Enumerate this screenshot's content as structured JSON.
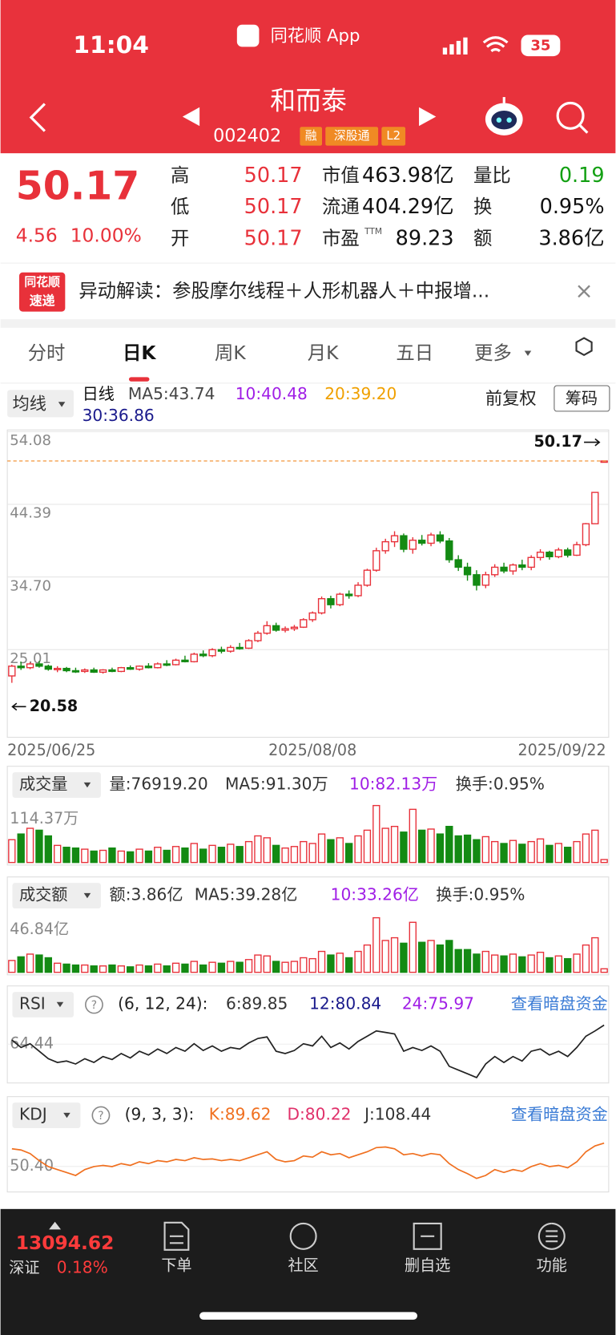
{
  "status": {
    "time": "11:04",
    "app": "同花顺 App",
    "battery": "35"
  },
  "header": {
    "name": "和而泰",
    "code": "002402",
    "tags": [
      "融",
      "深股通",
      "L2"
    ]
  },
  "quote": {
    "price": "50.17",
    "change": "4.56",
    "pct": "10.00%",
    "fields": [
      {
        "label": "高",
        "value": "50.17",
        "color": "#e8313a"
      },
      {
        "label": "市值",
        "value": "463.98亿",
        "color": "#111111"
      },
      {
        "label": "量比",
        "value": "0.19",
        "color": "#13a013"
      },
      {
        "label": "低",
        "value": "50.17",
        "color": "#e8313a"
      },
      {
        "label": "流通",
        "value": "404.29亿",
        "color": "#111111"
      },
      {
        "label": "换",
        "value": "0.95%",
        "color": "#111111"
      },
      {
        "label": "开",
        "value": "50.17",
        "color": "#e8313a"
      },
      {
        "label": "市盈",
        "sup": "TTM",
        "value": "89.23",
        "color": "#111111"
      },
      {
        "label": "额",
        "value": "3.86亿",
        "color": "#111111"
      }
    ]
  },
  "banner": {
    "badge": [
      "同花顺",
      "速递"
    ],
    "text": "异动解读：参股摩尔线程＋人形机器人＋中报增...",
    "close": "×"
  },
  "tabs": {
    "items": [
      "分时",
      "日K",
      "周K",
      "月K",
      "五日",
      "更多"
    ],
    "active": 1
  },
  "kline": {
    "button": "均线",
    "period": "日线",
    "ma": [
      {
        "text": "MA5:43.74",
        "color": "#444444"
      },
      {
        "text": "10:40.48",
        "color": "#a01ee6"
      },
      {
        "text": "20:39.20",
        "color": "#f0a000"
      },
      {
        "text": "30:36.86",
        "color": "#1a1a8c"
      }
    ],
    "adjust": "前复权",
    "chips": "筹码"
  },
  "chart_data": [
    {
      "type": "candlestick",
      "ylim": [
        13.31,
        54.31
      ],
      "yticks": [
        54.08,
        44.39,
        {
          "value": 34.7,
          "label": "34.70"
        },
        25.01
      ],
      "annotations": [
        {
          "text": "50.17",
          "value": 50.17
        },
        {
          "text": "20.58",
          "value": 20.58
        }
      ],
      "up_color": "#e8313a",
      "down_color": "#138a13",
      "categories": [
        "2025/06/25",
        null,
        null,
        null,
        null,
        null,
        null,
        null,
        null,
        null,
        null,
        null,
        null,
        null,
        null,
        null,
        null,
        null,
        null,
        null,
        null,
        null,
        null,
        null,
        null,
        null,
        null,
        null,
        null,
        null,
        null,
        null,
        null,
        "2025/08/08",
        null,
        null,
        null,
        null,
        null,
        null,
        null,
        null,
        null,
        null,
        null,
        null,
        null,
        null,
        null,
        null,
        null,
        null,
        null,
        null,
        null,
        null,
        null,
        null,
        null,
        null,
        null,
        null,
        null,
        null,
        null,
        "2025/09/22"
      ],
      "ohlc": [
        [
          21.5,
          23.0,
          20.58,
          22.8
        ],
        [
          22.8,
          23.4,
          22.3,
          22.6
        ],
        [
          22.6,
          23.3,
          22.4,
          23.1
        ],
        [
          23.1,
          23.5,
          22.6,
          22.8
        ],
        [
          22.8,
          23.0,
          22.2,
          22.4
        ],
        [
          22.4,
          22.8,
          22.0,
          22.5
        ],
        [
          22.5,
          22.7,
          22.0,
          22.2
        ],
        [
          22.2,
          22.6,
          21.9,
          22.1
        ],
        [
          22.1,
          22.5,
          21.9,
          22.3
        ],
        [
          22.3,
          22.6,
          21.9,
          22.0
        ],
        [
          22.0,
          22.4,
          21.8,
          22.3
        ],
        [
          22.3,
          22.6,
          22.0,
          22.1
        ],
        [
          22.1,
          22.7,
          22.0,
          22.6
        ],
        [
          22.6,
          22.9,
          22.3,
          22.4
        ],
        [
          22.4,
          22.9,
          22.2,
          22.8
        ],
        [
          22.8,
          23.2,
          22.5,
          22.6
        ],
        [
          22.6,
          23.3,
          22.5,
          23.1
        ],
        [
          23.1,
          23.6,
          22.8,
          23.0
        ],
        [
          23.0,
          23.8,
          22.9,
          23.6
        ],
        [
          23.6,
          24.2,
          23.3,
          23.4
        ],
        [
          23.4,
          24.6,
          23.3,
          24.4
        ],
        [
          24.4,
          24.9,
          24.0,
          24.2
        ],
        [
          24.2,
          25.2,
          24.0,
          25.0
        ],
        [
          25.0,
          25.4,
          24.5,
          24.8
        ],
        [
          24.8,
          25.6,
          24.6,
          25.3
        ],
        [
          25.3,
          25.9,
          25.0,
          25.2
        ],
        [
          25.2,
          26.4,
          25.1,
          26.2
        ],
        [
          26.2,
          27.5,
          26.0,
          27.2
        ],
        [
          27.2,
          28.8,
          27.0,
          28.2
        ],
        [
          28.2,
          28.6,
          27.4,
          27.6
        ],
        [
          27.6,
          28.1,
          27.3,
          27.8
        ],
        [
          27.8,
          28.3,
          27.5,
          28.0
        ],
        [
          28.0,
          29.2,
          27.9,
          29.0
        ],
        [
          29.0,
          30.1,
          28.7,
          29.9
        ],
        [
          29.9,
          32.1,
          29.7,
          31.8
        ],
        [
          31.8,
          32.2,
          30.5,
          31.0
        ],
        [
          31.0,
          32.6,
          30.8,
          32.4
        ],
        [
          32.4,
          32.9,
          31.8,
          32.2
        ],
        [
          32.2,
          34.0,
          32.0,
          33.6
        ],
        [
          33.6,
          35.8,
          33.4,
          35.6
        ],
        [
          35.6,
          38.6,
          35.4,
          38.2
        ],
        [
          38.2,
          39.8,
          37.8,
          39.4
        ],
        [
          39.4,
          40.8,
          38.7,
          40.2
        ],
        [
          40.2,
          40.5,
          38.0,
          38.4
        ],
        [
          38.4,
          40.0,
          37.8,
          39.6
        ],
        [
          39.6,
          40.3,
          38.9,
          39.2
        ],
        [
          39.2,
          40.6,
          38.8,
          40.3
        ],
        [
          40.3,
          40.8,
          39.2,
          39.5
        ],
        [
          39.5,
          39.9,
          36.6,
          37.0
        ],
        [
          37.0,
          37.6,
          35.5,
          36.0
        ],
        [
          36.0,
          36.6,
          34.2,
          35.0
        ],
        [
          35.0,
          35.6,
          32.9,
          33.6
        ],
        [
          33.6,
          35.4,
          33.2,
          35.0
        ],
        [
          35.0,
          36.4,
          34.7,
          36.0
        ],
        [
          36.0,
          36.6,
          35.2,
          35.5
        ],
        [
          35.5,
          36.5,
          35.0,
          36.3
        ],
        [
          36.3,
          37.0,
          35.6,
          36.0
        ],
        [
          36.0,
          37.6,
          35.6,
          37.3
        ],
        [
          37.3,
          38.4,
          36.9,
          38.0
        ],
        [
          38.0,
          38.2,
          37.0,
          37.4
        ],
        [
          37.4,
          38.6,
          37.2,
          38.3
        ],
        [
          38.3,
          38.6,
          37.3,
          37.6
        ],
        [
          37.6,
          39.4,
          37.5,
          39.0
        ],
        [
          39.0,
          41.9,
          38.8,
          41.8
        ],
        [
          41.8,
          46.0,
          41.8,
          45.98
        ],
        [
          50.17,
          50.17,
          50.17,
          50.17
        ]
      ]
    },
    {
      "type": "bar",
      "button": "成交量",
      "legend": [
        {
          "text": "量:76919.20",
          "color": "#333333"
        },
        {
          "text": "MA5:91.30万",
          "color": "#333333"
        },
        {
          "text": "10:82.13万",
          "color": "#a01ee6"
        },
        {
          "text": "换手:0.95%",
          "color": "#333333"
        }
      ],
      "ylim": [
        0,
        152.5
      ],
      "yticks": [
        {
          "value": 114.37,
          "label": "114.37万"
        }
      ],
      "values": [
        60,
        75,
        90,
        85,
        70,
        45,
        40,
        38,
        35,
        30,
        32,
        38,
        30,
        28,
        35,
        30,
        40,
        32,
        42,
        38,
        50,
        35,
        45,
        40,
        48,
        42,
        55,
        70,
        65,
        45,
        38,
        42,
        55,
        50,
        75,
        60,
        65,
        50,
        70,
        85,
        150,
        90,
        95,
        80,
        140,
        85,
        88,
        75,
        95,
        70,
        72,
        60,
        68,
        55,
        50,
        58,
        48,
        55,
        62,
        45,
        50,
        40,
        55,
        75,
        85,
        7.69
      ]
    },
    {
      "type": "bar",
      "button": "成交额",
      "legend": [
        {
          "text": "额:3.86亿",
          "color": "#333333"
        },
        {
          "text": "MA5:39.28亿",
          "color": "#333333"
        },
        {
          "text": "10:33.26亿",
          "color": "#a01ee6"
        },
        {
          "text": "换手:0.95%",
          "color": "#333333"
        }
      ],
      "ylim": [
        0,
        69.3
      ],
      "yticks": [
        {
          "value": 46.84,
          "label": "46.84亿"
        }
      ],
      "values": [
        13,
        17,
        20,
        19,
        16,
        10,
        9,
        8,
        8,
        7,
        7,
        8,
        7,
        6,
        8,
        7,
        9,
        7,
        10,
        9,
        12,
        8,
        11,
        10,
        12,
        11,
        14,
        19,
        18,
        12,
        11,
        12,
        16,
        15,
        23,
        19,
        21,
        16,
        23,
        30,
        60,
        35,
        38,
        32,
        55,
        33,
        35,
        30,
        35,
        25,
        25,
        20,
        23,
        19,
        18,
        20,
        17,
        19,
        22,
        16,
        18,
        15,
        20,
        30,
        38,
        3.86
      ]
    },
    {
      "type": "line",
      "button": "RSI",
      "params": "(6, 12, 24):",
      "legend": [
        {
          "text": "6:89.85",
          "color": "#333333"
        },
        {
          "text": "12:80.84",
          "color": "#1a1a8c"
        },
        {
          "text": "24:75.97",
          "color": "#a01ee6"
        }
      ],
      "link": "查看暗盘资金",
      "ylim": [
        15,
        100
      ],
      "yticks": [
        64.44
      ],
      "series": [
        {
          "name": "6",
          "color": "#222222",
          "values": [
            70,
            60,
            65,
            55,
            45,
            40,
            42,
            38,
            45,
            40,
            48,
            44,
            52,
            46,
            55,
            50,
            58,
            52,
            60,
            55,
            65,
            56,
            62,
            55,
            60,
            58,
            66,
            72,
            74,
            55,
            52,
            56,
            65,
            62,
            75,
            60,
            66,
            58,
            68,
            75,
            82,
            80,
            78,
            55,
            60,
            56,
            62,
            55,
            35,
            30,
            25,
            20,
            38,
            48,
            40,
            48,
            42,
            55,
            58,
            50,
            55,
            48,
            60,
            75,
            82,
            89.85
          ]
        }
      ]
    },
    {
      "type": "line",
      "button": "KDJ",
      "params": "(9, 3, 3):",
      "legend": [
        {
          "text": "K:89.62",
          "color": "#f07020"
        },
        {
          "text": "D:80.22",
          "color": "#e0306a"
        },
        {
          "text": "J:108.44",
          "color": "#333333"
        }
      ],
      "link": "查看暗盘资金",
      "ylim": [
        10,
        115
      ],
      "yticks": [
        {
          "value": 50.4,
          "label": "50.40"
        }
      ],
      "series": [
        {
          "name": "K",
          "color": "#f07020",
          "values": [
            80,
            78,
            72,
            60,
            50,
            45,
            40,
            35,
            45,
            50,
            52,
            50,
            55,
            52,
            58,
            55,
            60,
            58,
            62,
            60,
            65,
            62,
            63,
            60,
            62,
            60,
            65,
            70,
            75,
            62,
            58,
            60,
            68,
            66,
            75,
            70,
            72,
            65,
            70,
            75,
            82,
            83,
            80,
            70,
            72,
            68,
            72,
            70,
            55,
            45,
            38,
            30,
            35,
            45,
            40,
            45,
            42,
            50,
            55,
            50,
            52,
            48,
            58,
            75,
            85,
            89.62
          ]
        }
      ]
    }
  ],
  "footer": {
    "index": "13094.62",
    "market": "深证",
    "pct": "0.18%",
    "menu": [
      "下单",
      "社区",
      "删自选",
      "功能"
    ]
  }
}
